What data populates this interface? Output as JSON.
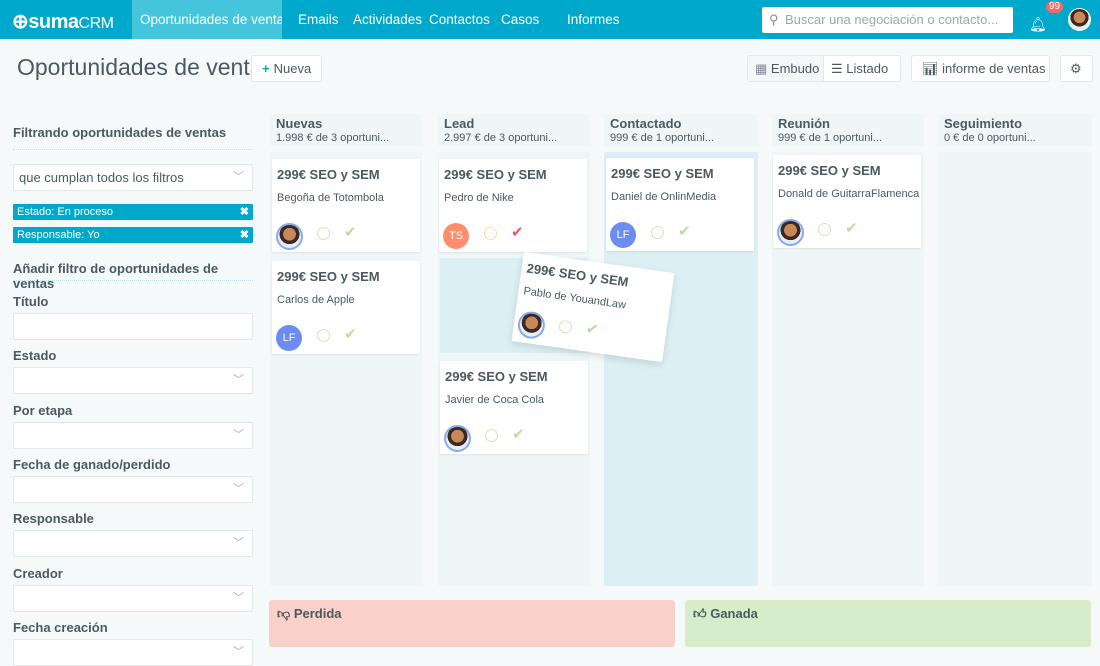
{
  "app": {
    "logo_main": "suma",
    "logo_sub": "CRM"
  },
  "nav": [
    {
      "label": "Oportunidades de ventas",
      "active": true
    },
    {
      "label": "Emails"
    },
    {
      "label": "Actividades"
    },
    {
      "label": "Contactos"
    },
    {
      "label": "Casos"
    },
    {
      "label": "Informes"
    }
  ],
  "search": {
    "placeholder": "Buscar una negociación o contacto..."
  },
  "notifications": {
    "count": "99"
  },
  "header": {
    "title": "Oportunidades de ventas",
    "new_label": "Nueva",
    "view_funnel": "Embudo",
    "view_list": "Listado",
    "report": "informe de ventas"
  },
  "sidebar": {
    "filtering_title": "Filtrando oportunidades de ventas",
    "match_select": "que cumplan todos los filtros",
    "active_filters": [
      "Estado: En proceso",
      "Responsable: Yo"
    ],
    "add_filter_title": "Añadir filtro de oportunidades de ventas",
    "fields": [
      "Título",
      "Estado",
      "Por etapa",
      "Fecha de ganado/perdido",
      "Responsable",
      "Creador",
      "Fecha creación"
    ]
  },
  "columns": [
    {
      "name": "Nuevas",
      "summary": "1.998 € de 3 oportuni..."
    },
    {
      "name": "Lead",
      "summary": "2.997 € de 3 oportuni..."
    },
    {
      "name": "Contactado",
      "summary": "999 € de 1 oportuni..."
    },
    {
      "name": "Reunión",
      "summary": "999 € de 1 oportuni..."
    },
    {
      "name": "Seguimiento",
      "summary": "0 € de 0 oportuni..."
    }
  ],
  "cards": [
    {
      "title": "299€ SEO y SEM",
      "contact": "Begoña de Totombola",
      "column": "Nuevas"
    },
    {
      "title": "299€ SEO y SEM",
      "contact": "Carlos de Apple",
      "column": "Nuevas",
      "initials": "LF"
    },
    {
      "title": "299€ SEO y SEM",
      "contact": "Pedro de Nike",
      "column": "Lead",
      "initials": "TS"
    },
    {
      "title": "299€ SEO y SEM",
      "contact": "Javier de Coca Cola",
      "column": "Lead"
    },
    {
      "title": "299€ SEO y SEM",
      "contact": "Daniel de OnlinMedia",
      "column": "Contactado",
      "initials": "LF"
    },
    {
      "title": "299€ SEO y SEM",
      "contact": "Donald de GuitarraFlamenca",
      "column": "Reunión"
    },
    {
      "title": "299€ SEO y SEM",
      "contact": "Pablo de YouandLaw",
      "dragging": true
    }
  ],
  "outcomes": {
    "lost": "Perdida",
    "won": "Ganada"
  },
  "colors": {
    "primary": "#00a9cc",
    "lost": "#f9d1c9",
    "won": "#d7ecc8",
    "ts": "#fd8f6e",
    "lf": "#6c8cf0",
    "check_done": "#ef5a5a"
  }
}
